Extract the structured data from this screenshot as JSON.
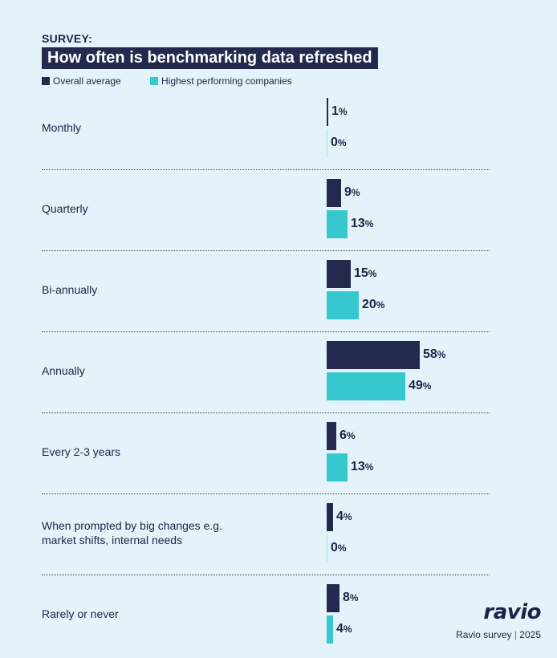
{
  "header": {
    "eyebrow": "SURVEY:",
    "title": "How often is benchmarking data refreshed"
  },
  "colors": {
    "overall": "#232a4e",
    "top": "#35c9cf"
  },
  "legend": [
    {
      "label": "Overall average",
      "color_key": "overall"
    },
    {
      "label": "Highest performing companies",
      "color_key": "top"
    }
  ],
  "chart_data": {
    "type": "bar",
    "orientation": "horizontal",
    "title": "How often is benchmarking data refreshed",
    "categories": [
      "Monthly",
      "Quarterly",
      "Bi-annually",
      "Annually",
      "Every 2-3 years",
      "When prompted by big changes e.g.\nmarket shifts, internal needs",
      "Rarely or never"
    ],
    "series": [
      {
        "name": "Overall average",
        "values": [
          1,
          9,
          15,
          58,
          6,
          4,
          8
        ]
      },
      {
        "name": "Highest performing companies",
        "values": [
          0,
          13,
          20,
          49,
          13,
          0,
          4
        ]
      }
    ],
    "unit": "%",
    "xlim": [
      0,
      100
    ]
  },
  "footer": {
    "logo": "ravio",
    "source": "Ravio survey",
    "year": "2025"
  }
}
